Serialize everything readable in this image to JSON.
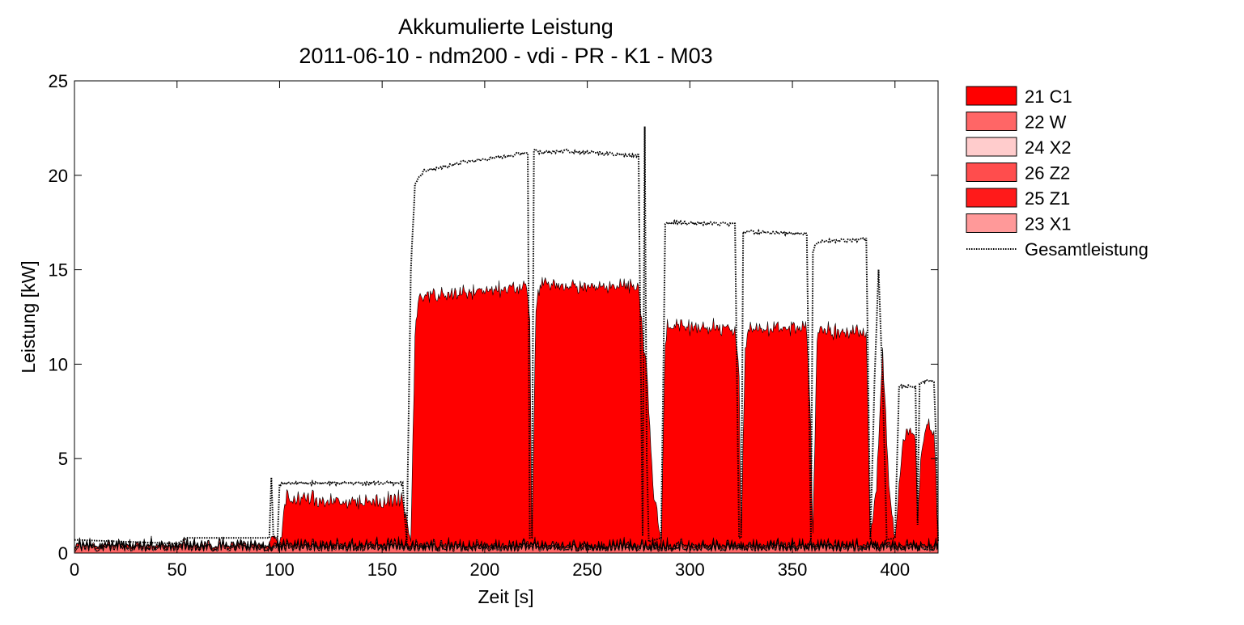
{
  "chart_data": {
    "type": "area",
    "title": "Akkumulierte Leistung",
    "subtitle": "2011-06-10 - ndm200 - vdi - PR - K1 - M03",
    "xlabel": "Zeit [s]",
    "ylabel": "Leistung [kW]",
    "xlim": [
      0,
      421
    ],
    "ylim": [
      0,
      25
    ],
    "xticks": [
      0,
      50,
      100,
      150,
      200,
      250,
      300,
      350,
      400
    ],
    "yticks": [
      0,
      5,
      10,
      15,
      20,
      25
    ],
    "grid": false,
    "legend_position": "outside-right",
    "series": [
      {
        "name": "21 C1",
        "color": "#ff0000",
        "style": "area",
        "x": [
          0,
          95,
          96,
          100,
          101,
          103,
          160,
          162,
          164,
          166,
          168,
          220,
          222,
          223,
          225,
          227,
          275,
          277,
          279,
          282,
          286,
          288,
          290,
          322,
          324,
          325,
          327,
          329,
          357,
          359,
          360,
          362,
          364,
          386,
          388,
          391,
          394,
          397,
          400,
          404,
          406,
          410,
          411,
          413,
          415,
          419,
          421
        ],
        "y": [
          0,
          0,
          0.6,
          0,
          0.5,
          2.4,
          2.2,
          1.2,
          0.3,
          11.0,
          13.1,
          13.6,
          12.0,
          0.3,
          12.5,
          13.8,
          13.6,
          11.0,
          9.5,
          3.0,
          0.2,
          11.0,
          11.6,
          11.4,
          9.0,
          0.4,
          10.5,
          11.4,
          11.5,
          6.0,
          0.5,
          11.0,
          11.3,
          11.2,
          0.3,
          3.0,
          10.2,
          3.0,
          0.2,
          5.5,
          5.8,
          5.8,
          1.5,
          5.0,
          6.3,
          6.0,
          0.5
        ]
      },
      {
        "name": "22 W",
        "color": "#ff6666",
        "style": "area",
        "x": [
          0,
          421
        ],
        "y": [
          0.35,
          0.35
        ]
      },
      {
        "name": "24 X2",
        "color": "#ffcccc",
        "style": "area",
        "x": [
          0,
          421
        ],
        "y": [
          0.05,
          0.05
        ]
      },
      {
        "name": "26 Z2",
        "color": "#ff4d4d",
        "style": "area",
        "x": [
          0,
          421
        ],
        "y": [
          0.1,
          0.1
        ]
      },
      {
        "name": "25 Z1",
        "color": "#ff1a1a",
        "style": "area",
        "x": [
          0,
          421
        ],
        "y": [
          0.1,
          0.1
        ]
      },
      {
        "name": "23 X1",
        "color": "#ff9999",
        "style": "area",
        "x": [
          0,
          421
        ],
        "y": [
          0.05,
          0.05
        ]
      },
      {
        "name": "Gesamtleistung",
        "color": "#000000",
        "style": "dotted-line",
        "x": [
          0,
          50,
          55,
          95,
          96,
          97,
          99,
          100,
          102,
          160,
          161,
          162,
          164,
          166,
          170,
          190,
          210,
          221,
          222,
          223,
          224,
          226,
          240,
          275,
          277,
          278,
          279,
          280,
          286,
          288,
          290,
          322,
          323,
          324,
          325,
          326,
          328,
          357,
          358,
          359,
          360,
          362,
          386,
          387,
          388,
          390,
          392,
          394,
          396,
          400,
          402,
          404,
          410,
          411,
          412,
          413,
          419,
          420,
          421
        ],
        "y": [
          0.7,
          0.5,
          0.8,
          0.8,
          4.0,
          0.8,
          0.8,
          3.6,
          3.7,
          3.7,
          2.0,
          0.6,
          15.0,
          19.5,
          20.2,
          20.7,
          21.0,
          21.2,
          0.8,
          0.8,
          21.4,
          21.2,
          21.3,
          21.0,
          0.9,
          22.5,
          5.0,
          0.6,
          0.8,
          17.4,
          17.5,
          17.4,
          9.0,
          0.8,
          0.8,
          17.0,
          17.0,
          16.9,
          9.0,
          0.7,
          16.0,
          16.5,
          16.6,
          9.0,
          0.7,
          9.0,
          15.0,
          9.0,
          0.7,
          0.8,
          8.8,
          8.8,
          8.8,
          1.5,
          9.0,
          9.1,
          9.1,
          6.0,
          0.6
        ]
      }
    ]
  }
}
